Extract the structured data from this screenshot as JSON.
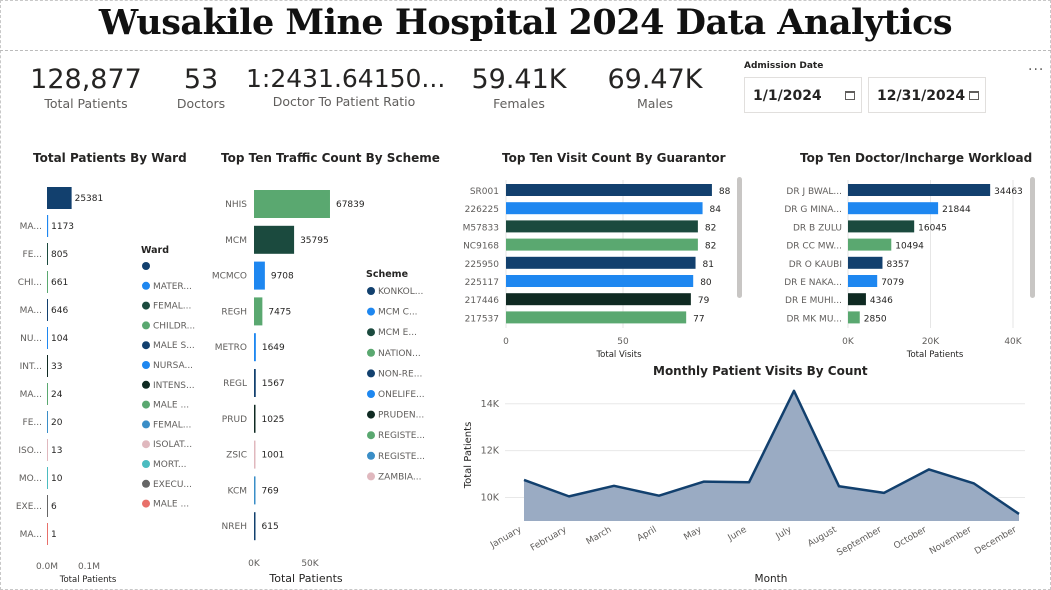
{
  "title": "Wusakile Mine Hospital 2024 Data Analytics",
  "kpis": [
    {
      "value": "128,877",
      "label": "Total Patients"
    },
    {
      "value": "53",
      "label": "Doctors"
    },
    {
      "value": "1:2431.64150...",
      "label": "Doctor To Patient Ratio"
    },
    {
      "value": "59.41K",
      "label": "Females"
    },
    {
      "value": "69.47K",
      "label": "Males"
    }
  ],
  "filter": {
    "label": "Admission Date",
    "start": "1/1/2024",
    "end": "12/31/2024"
  },
  "more_label": "...",
  "colors": {
    "navy": "#12406e",
    "blue": "#1e87f0",
    "dark": "#1b4a3e",
    "green": "#5aa870",
    "area": "#9aabc3",
    "line": "#12406e"
  },
  "chart_data": [
    {
      "type": "bar",
      "title": "Total Patients By Ward",
      "categories": [
        "",
        "MA...",
        "FE...",
        "CHI...",
        "MA...",
        "NU...",
        "INT...",
        "MA...",
        "FE...",
        "ISO...",
        "MO...",
        "EXE...",
        "MA..."
      ],
      "values": [
        25381,
        1173,
        805,
        661,
        646,
        104,
        33,
        24,
        20,
        13,
        10,
        6,
        1
      ],
      "xlabel": "Total Patients",
      "xticks": [
        "0.0M",
        "0.1M"
      ],
      "xlim": [
        0,
        100000
      ],
      "legend": {
        "title": "Ward",
        "items": [
          "",
          "MATER...",
          "FEMAL...",
          "CHILDR...",
          "MALE S...",
          "NURSA...",
          "INTENS...",
          "MALE ...",
          "FEMAL...",
          "ISOLAT...",
          "MORT...",
          "EXECU...",
          "MALE ..."
        ],
        "colors": [
          "#12406e",
          "#1e87f0",
          "#1b4a3e",
          "#5aa870",
          "#12406e",
          "#1e87f0",
          "#0f2a22",
          "#5aa870",
          "#3a8ec7",
          "#e0b8be",
          "#4bbcc0",
          "#666666",
          "#e8706a"
        ]
      }
    },
    {
      "type": "bar",
      "title": "Top Ten Traffic Count By Scheme",
      "categories": [
        "NHIS",
        "MCM",
        "MCMCO",
        "REGH",
        "METRO",
        "REGL",
        "PRUD",
        "ZSIC",
        "KCM",
        "NREH"
      ],
      "values": [
        67839,
        35795,
        9708,
        7475,
        1649,
        1567,
        1025,
        1001,
        769,
        615
      ],
      "colors": [
        "#5aa870",
        "#1b4a3e",
        "#1e87f0",
        "#5aa870",
        "#1e87f0",
        "#12406e",
        "#0f2a22",
        "#e0b8be",
        "#3a8ec7",
        "#12406e"
      ],
      "xlabel": "Total Patients",
      "xticks": [
        "0K",
        "50K"
      ],
      "xlim": [
        0,
        100000
      ],
      "legend": {
        "title": "Scheme",
        "items": [
          "KONKOL...",
          "MCM C...",
          "MCM E...",
          "NATION...",
          "NON-RE...",
          "ONELIFE...",
          "PRUDEN...",
          "REGISTE...",
          "REGISTE...",
          "ZAMBIA..."
        ],
        "colors": [
          "#12406e",
          "#1e87f0",
          "#1b4a3e",
          "#5aa870",
          "#12406e",
          "#1e87f0",
          "#0f2a22",
          "#5aa870",
          "#3a8ec7",
          "#e0b8be"
        ]
      }
    },
    {
      "type": "bar",
      "title": "Top Ten Visit Count By Guarantor",
      "categories": [
        "SR001",
        "226225",
        "M57833",
        "NC9168",
        "225950",
        "225117",
        "217446",
        "217537"
      ],
      "values": [
        88,
        84,
        82,
        82,
        81,
        80,
        79,
        77
      ],
      "colors": [
        "#12406e",
        "#1e87f0",
        "#1b4a3e",
        "#5aa870",
        "#12406e",
        "#1e87f0",
        "#0f2a22",
        "#5aa870"
      ],
      "xlabel": "Total Visits",
      "xticks": [
        "0",
        "50"
      ],
      "xlim": [
        0,
        100
      ]
    },
    {
      "type": "bar",
      "title": "Top Ten Doctor/Incharge Workload",
      "categories": [
        "DR J BWAL...",
        "DR G MINA...",
        "DR B ZULU",
        "DR CC MW...",
        "DR O KAUBI",
        "DR E NAKA...",
        "DR E MUHI...",
        "DR MK MU..."
      ],
      "values": [
        34463,
        21844,
        16045,
        10494,
        8357,
        7079,
        4346,
        2850
      ],
      "colors": [
        "#12406e",
        "#1e87f0",
        "#1b4a3e",
        "#5aa870",
        "#12406e",
        "#1e87f0",
        "#0f2a22",
        "#5aa870"
      ],
      "xlabel": "Total Patients",
      "xticks": [
        "0K",
        "20K",
        "40K"
      ],
      "xlim": [
        0,
        40000
      ]
    },
    {
      "type": "area",
      "title": "Monthly Patient Visits By Count",
      "categories": [
        "January",
        "February",
        "March",
        "April",
        "May",
        "June",
        "July",
        "August",
        "September",
        "October",
        "November",
        "December"
      ],
      "values": [
        10750,
        10050,
        10500,
        10080,
        10680,
        10650,
        14550,
        10480,
        10200,
        11200,
        10600,
        9300
      ],
      "xlabel": "Month",
      "ylabel": "Total Patients",
      "yticks": [
        "10K",
        "12K",
        "14K"
      ],
      "ylim": [
        9000,
        14800
      ]
    }
  ]
}
